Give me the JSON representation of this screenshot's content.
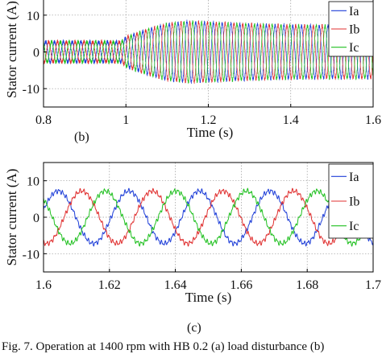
{
  "chart_data": [
    {
      "type": "line",
      "panel_label": "(b)",
      "xlabel": "Time (s)",
      "ylabel": "Stator current (A)",
      "xlim": [
        0.8,
        1.6
      ],
      "ylim": [
        -15,
        15
      ],
      "xticks": [
        0.8,
        1,
        1.2,
        1.4,
        1.6
      ],
      "xtick_labels": [
        "0.8",
        "1",
        "1.2",
        "1.4",
        "1.6"
      ],
      "yticks": [
        -10,
        0,
        10
      ],
      "ytick_labels": [
        "-10",
        "0",
        "10"
      ],
      "grid": true,
      "legend": "top-right",
      "frequency_hz": 46.7,
      "amplitude_envelope": {
        "t": [
          0.8,
          0.99,
          1.0,
          1.05,
          1.1,
          1.15,
          1.2,
          1.3,
          1.4,
          1.5,
          1.6
        ],
        "amplitude": [
          2.8,
          2.8,
          4.0,
          6.0,
          7.6,
          8.2,
          8.0,
          7.5,
          7.2,
          7.1,
          7.1
        ]
      },
      "series": [
        {
          "name": "Ia",
          "color": "#1f3fd8",
          "phase_deg": 0
        },
        {
          "name": "Ib",
          "color": "#e03030",
          "phase_deg": -120
        },
        {
          "name": "Ic",
          "color": "#20c020",
          "phase_deg": 120
        }
      ]
    },
    {
      "type": "line",
      "panel_label": "(c)",
      "xlabel": "Time (s)",
      "ylabel": "Stator current (A)",
      "xlim": [
        1.6,
        1.7
      ],
      "ylim": [
        -15,
        15
      ],
      "xticks": [
        1.6,
        1.62,
        1.64,
        1.66,
        1.68,
        1.7
      ],
      "xtick_labels": [
        "1.6",
        "1.62",
        "1.64",
        "1.66",
        "1.68",
        "1.7"
      ],
      "yticks": [
        -10,
        0,
        10
      ],
      "ytick_labels": [
        "-10",
        "0",
        "10"
      ],
      "grid": true,
      "legend": "top-right",
      "frequency_hz": 46.7,
      "amplitude": 7.2,
      "series": [
        {
          "name": "Ia",
          "color": "#1f3fd8",
          "phase_deg": 15
        },
        {
          "name": "Ib",
          "color": "#e03030",
          "phase_deg": -105
        },
        {
          "name": "Ic",
          "color": "#20c020",
          "phase_deg": 135
        }
      ]
    }
  ],
  "caption": "Fig. 7. Operation at 1400 rpm with HB 0.2 (a) load disturbance (b)"
}
